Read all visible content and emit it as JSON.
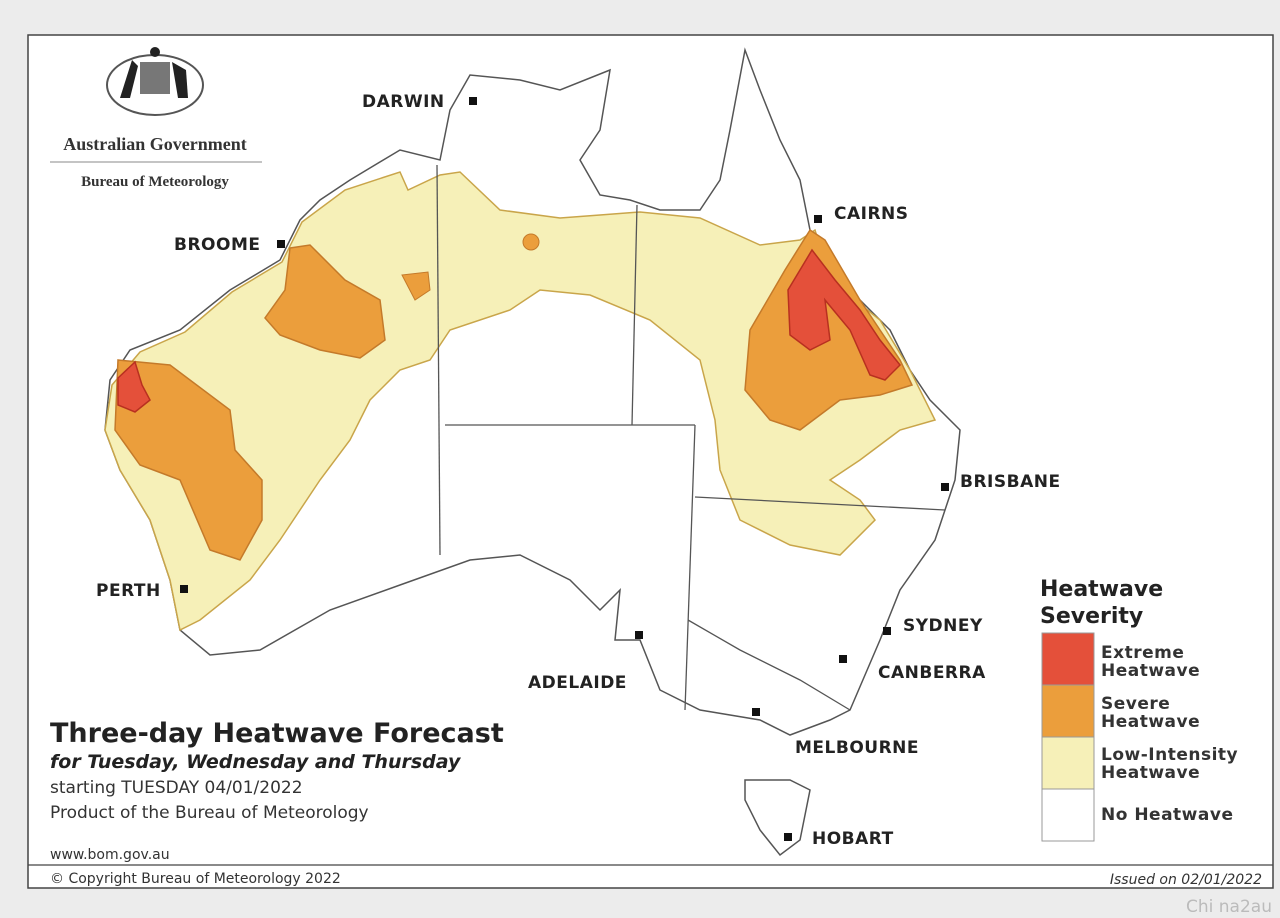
{
  "header": {
    "government": "Australian Government",
    "bureau": "Bureau of Meteorology"
  },
  "cities": [
    "DARWIN",
    "CAIRNS",
    "BROOME",
    "BRISBANE",
    "PERTH",
    "SYDNEY",
    "CANBERRA",
    "ADELAIDE",
    "MELBOURNE",
    "HOBART"
  ],
  "legend": {
    "title": [
      "Heatwave",
      "Severity"
    ],
    "items": [
      {
        "label": [
          "Extreme",
          "Heatwave"
        ],
        "color": "#e4503a"
      },
      {
        "label": [
          "Severe",
          "Heatwave"
        ],
        "color": "#eb9e3c"
      },
      {
        "label": [
          "Low-Intensity",
          "Heatwave"
        ],
        "color": "#f6f0b8"
      },
      {
        "label": [
          "No Heatwave"
        ],
        "color": "#ffffff"
      }
    ]
  },
  "forecast": {
    "title": "Three-day Heatwave Forecast",
    "subtitle": "for Tuesday, Wednesday and Thursday",
    "starting": "starting TUESDAY 04/01/2022",
    "product": "Product of the Bureau of Meteorology",
    "website": "www.bom.gov.au"
  },
  "footer": {
    "copyright": "© Copyright Bureau of Meteorology 2022",
    "issued": "Issued on 02/01/2022"
  },
  "watermark": "Chi na2au"
}
